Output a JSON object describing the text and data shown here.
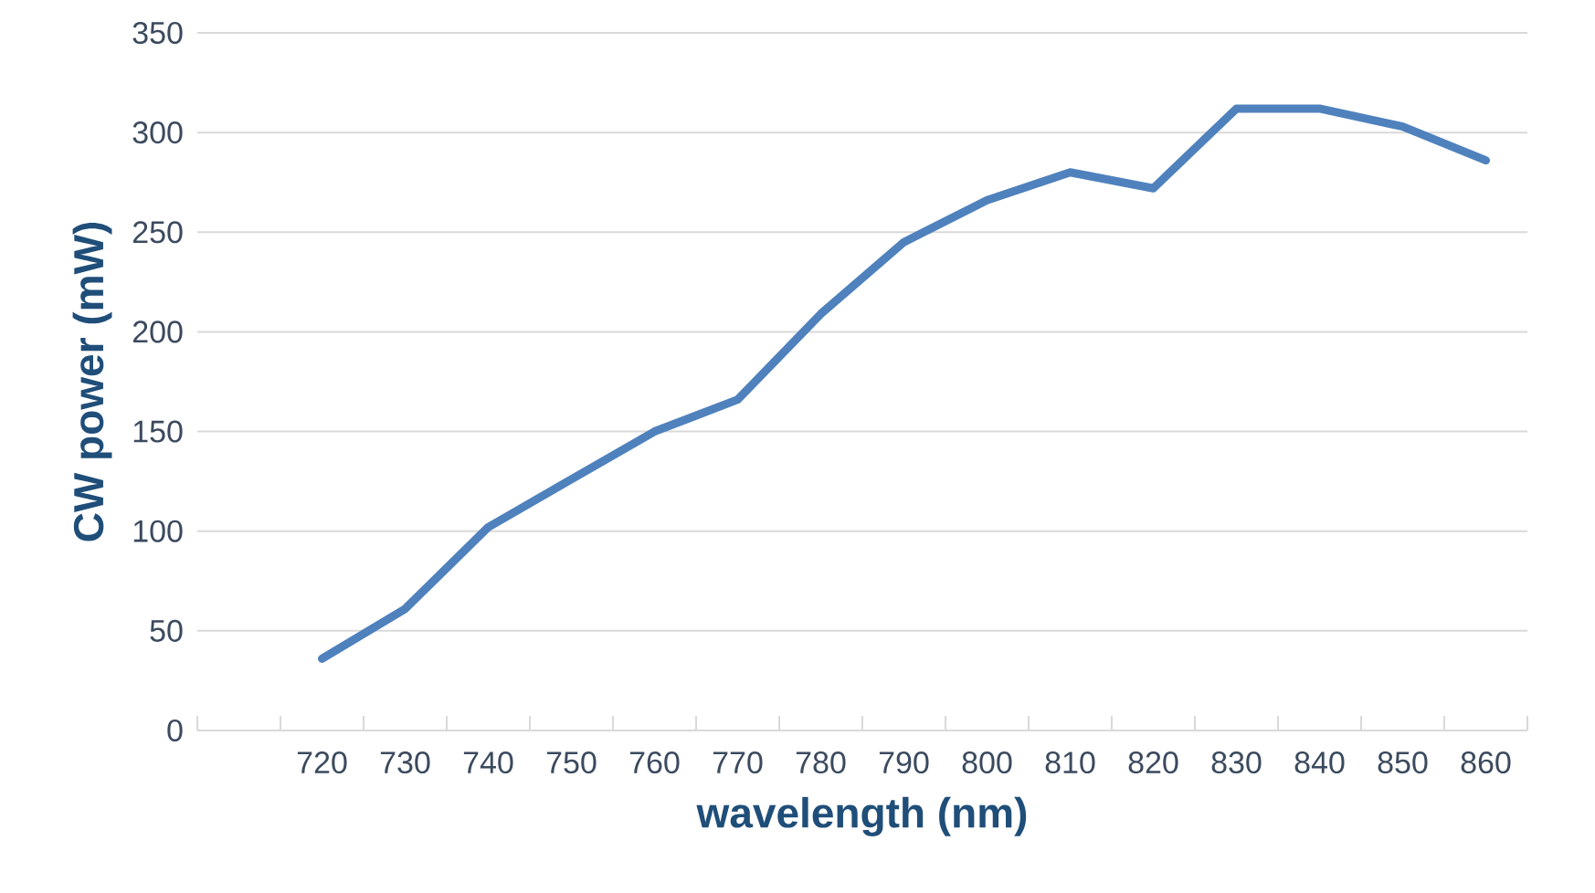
{
  "chart_data": {
    "type": "line",
    "xlabel": "wavelength (nm)",
    "ylabel": "CW power (mW)",
    "categories": [
      null,
      "720",
      "730",
      "740",
      "750",
      "760",
      "770",
      "780",
      "790",
      "800",
      "810",
      "820",
      "830",
      "840",
      "850",
      "860"
    ],
    "series": [
      {
        "color": "#4f81bd",
        "values": [
          null,
          36,
          61,
          102,
          126,
          150,
          166,
          209,
          245,
          266,
          280,
          272,
          312,
          312,
          303,
          286
        ]
      }
    ],
    "ylim": [
      0,
      350
    ],
    "yticks": [
      0,
      50,
      100,
      150,
      200,
      250,
      300,
      350
    ],
    "grid": "y"
  }
}
